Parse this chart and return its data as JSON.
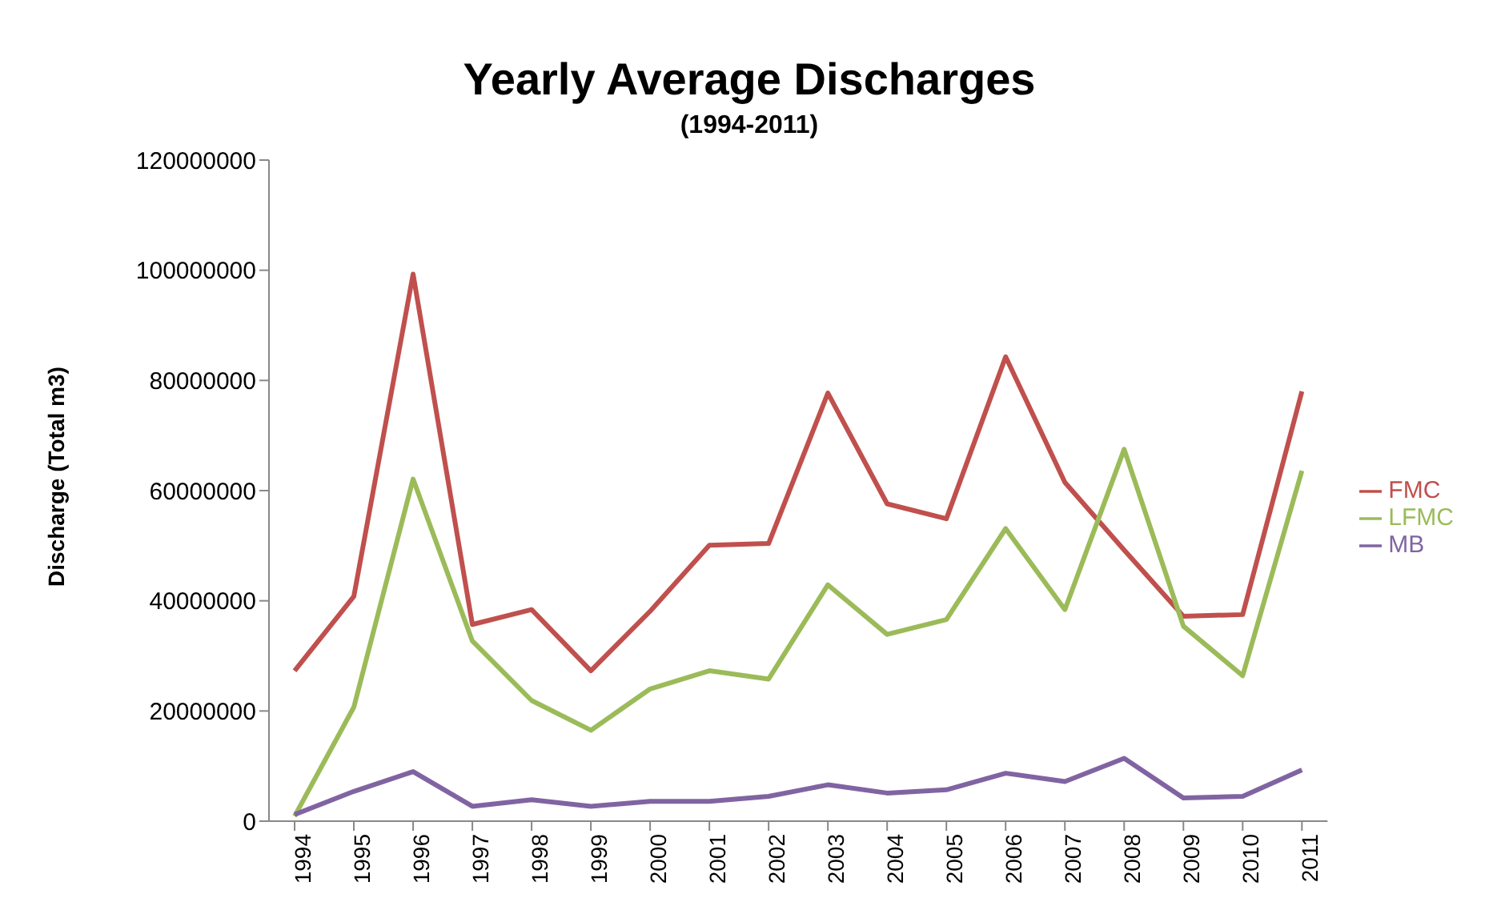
{
  "chart_data": {
    "type": "line",
    "title": "Yearly Average Discharges",
    "subtitle": "(1994-2011)",
    "ylabel": "Discharge (Total m3)",
    "categories": [
      "1994",
      "1995",
      "1996",
      "1997",
      "1998",
      "1999",
      "2000",
      "2001",
      "2002",
      "2003",
      "2004",
      "2005",
      "2006",
      "2007",
      "2008",
      "2009",
      "2010",
      "2011"
    ],
    "series": [
      {
        "name": "FMC",
        "color": "#c0504d",
        "values": [
          27300000,
          40800000,
          99300000,
          35700000,
          38400000,
          27300000,
          38100000,
          50100000,
          50400000,
          77700000,
          57600000,
          54900000,
          84300000,
          61500000,
          49200000,
          37200000,
          37500000,
          78000000
        ]
      },
      {
        "name": "LFMC",
        "color": "#9bbb59",
        "values": [
          900000,
          20700000,
          62100000,
          32700000,
          21900000,
          16500000,
          24000000,
          27300000,
          25800000,
          42900000,
          33900000,
          36600000,
          53100000,
          38400000,
          67500000,
          35400000,
          26400000,
          63600000
        ]
      },
      {
        "name": "MB",
        "color": "#8064a2",
        "values": [
          1200000,
          5400000,
          9000000,
          2700000,
          3900000,
          2700000,
          3600000,
          3600000,
          4500000,
          6600000,
          5100000,
          5700000,
          8700000,
          7200000,
          11400000,
          4200000,
          4500000,
          9300000
        ]
      }
    ],
    "ylim": [
      0,
      120000000
    ],
    "yticks": [
      0,
      20000000,
      40000000,
      60000000,
      80000000,
      100000000,
      120000000
    ],
    "grid": false,
    "legend": "right",
    "marker": "none",
    "line_style": "solid"
  }
}
